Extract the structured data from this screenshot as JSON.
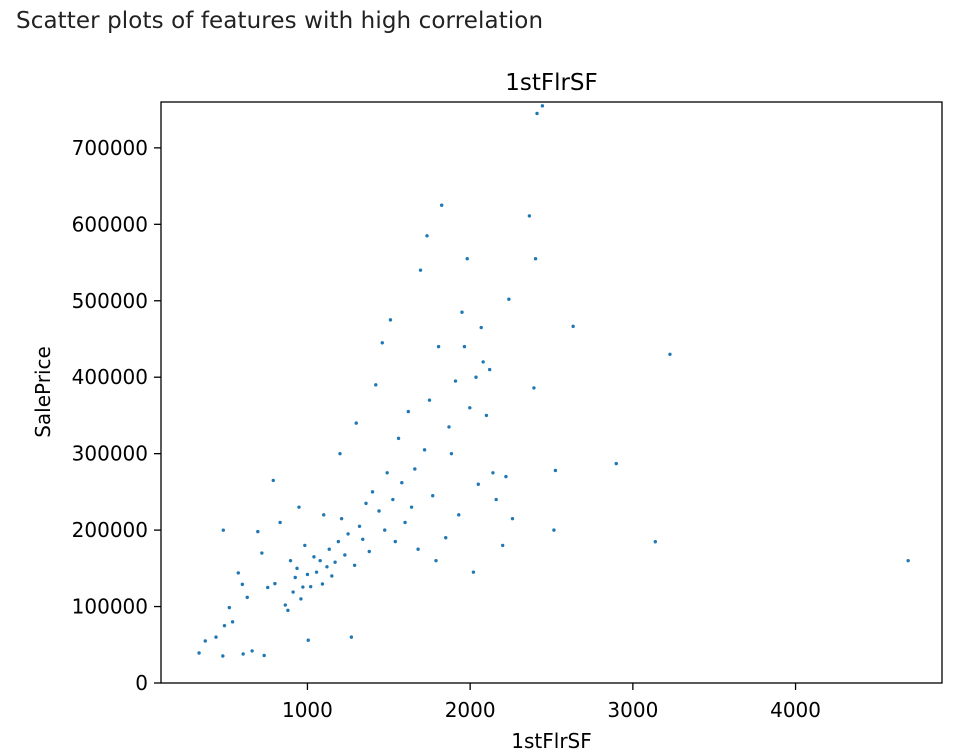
{
  "page": {
    "heading": "Scatter plots of features with high correlation"
  },
  "chart_data": {
    "type": "scatter",
    "title": "1stFlrSF",
    "xlabel": "1stFlrSF",
    "ylabel": "SalePrice",
    "xlim": [
      100,
      4900
    ],
    "ylim": [
      0,
      760000
    ],
    "xticks": [
      1000,
      2000,
      3000,
      4000
    ],
    "yticks": [
      0,
      100000,
      200000,
      300000,
      400000,
      500000,
      600000,
      700000
    ],
    "grid": false,
    "marker_color": "#1f77b4",
    "series": [
      {
        "points": [
          [
            334,
            39300
          ],
          [
            372,
            55000
          ],
          [
            438,
            60000
          ],
          [
            480,
            35300
          ],
          [
            483,
            199900
          ],
          [
            490,
            75000
          ],
          [
            520,
            98600
          ],
          [
            540,
            80000
          ],
          [
            575,
            144000
          ],
          [
            600,
            129000
          ],
          [
            605,
            38000
          ],
          [
            630,
            112000
          ],
          [
            660,
            42000
          ],
          [
            695,
            198000
          ],
          [
            720,
            170000
          ],
          [
            734,
            36000
          ],
          [
            756,
            125000
          ],
          [
            790,
            265000
          ],
          [
            800,
            130000
          ],
          [
            832,
            210000
          ],
          [
            864,
            102000
          ],
          [
            880,
            95000
          ],
          [
            896,
            160000
          ],
          [
            912,
            119000
          ],
          [
            925,
            138000
          ],
          [
            936,
            150000
          ],
          [
            948,
            230000
          ],
          [
            960,
            110000
          ],
          [
            972,
            125500
          ],
          [
            984,
            180000
          ],
          [
            1000,
            142000
          ],
          [
            1005,
            56000
          ],
          [
            1020,
            126000
          ],
          [
            1040,
            165000
          ],
          [
            1056,
            145000
          ],
          [
            1078,
            160000
          ],
          [
            1092,
            129500
          ],
          [
            1100,
            220000
          ],
          [
            1120,
            152000
          ],
          [
            1134,
            175000
          ],
          [
            1150,
            140000
          ],
          [
            1170,
            158000
          ],
          [
            1190,
            185000
          ],
          [
            1200,
            300000
          ],
          [
            1210,
            215000
          ],
          [
            1230,
            167500
          ],
          [
            1250,
            195000
          ],
          [
            1270,
            60000
          ],
          [
            1290,
            154000
          ],
          [
            1300,
            340000
          ],
          [
            1320,
            205000
          ],
          [
            1340,
            188000
          ],
          [
            1360,
            235000
          ],
          [
            1380,
            172000
          ],
          [
            1400,
            250000
          ],
          [
            1420,
            390000
          ],
          [
            1440,
            225000
          ],
          [
            1460,
            445000
          ],
          [
            1475,
            200000
          ],
          [
            1490,
            275000
          ],
          [
            1510,
            475000
          ],
          [
            1525,
            240000
          ],
          [
            1540,
            185000
          ],
          [
            1560,
            320000
          ],
          [
            1580,
            262000
          ],
          [
            1600,
            210000
          ],
          [
            1620,
            355000
          ],
          [
            1640,
            230000
          ],
          [
            1660,
            280000
          ],
          [
            1680,
            175000
          ],
          [
            1695,
            540000
          ],
          [
            1720,
            305000
          ],
          [
            1735,
            585000
          ],
          [
            1750,
            370000
          ],
          [
            1770,
            245000
          ],
          [
            1790,
            160000
          ],
          [
            1806,
            440000
          ],
          [
            1825,
            625000
          ],
          [
            1850,
            190000
          ],
          [
            1870,
            335000
          ],
          [
            1885,
            300000
          ],
          [
            1910,
            395000
          ],
          [
            1930,
            220000
          ],
          [
            1950,
            485000
          ],
          [
            1965,
            440000
          ],
          [
            1982,
            555000
          ],
          [
            1998,
            360000
          ],
          [
            2020,
            145000
          ],
          [
            2036,
            400000
          ],
          [
            2050,
            260000
          ],
          [
            2068,
            465000
          ],
          [
            2080,
            420000
          ],
          [
            2100,
            350000
          ],
          [
            2120,
            410000
          ],
          [
            2140,
            275000
          ],
          [
            2160,
            240000
          ],
          [
            2200,
            180000
          ],
          [
            2220,
            270000
          ],
          [
            2238,
            502000
          ],
          [
            2260,
            215000
          ],
          [
            2364,
            611000
          ],
          [
            2392,
            386000
          ],
          [
            2402,
            555000
          ],
          [
            2411,
            745000
          ],
          [
            2444,
            755000
          ],
          [
            2515,
            200000
          ],
          [
            2524,
            278000
          ],
          [
            2633,
            466500
          ],
          [
            2898,
            287000
          ],
          [
            3138,
            184750
          ],
          [
            3228,
            430000
          ],
          [
            4692,
            160000
          ]
        ]
      }
    ]
  }
}
